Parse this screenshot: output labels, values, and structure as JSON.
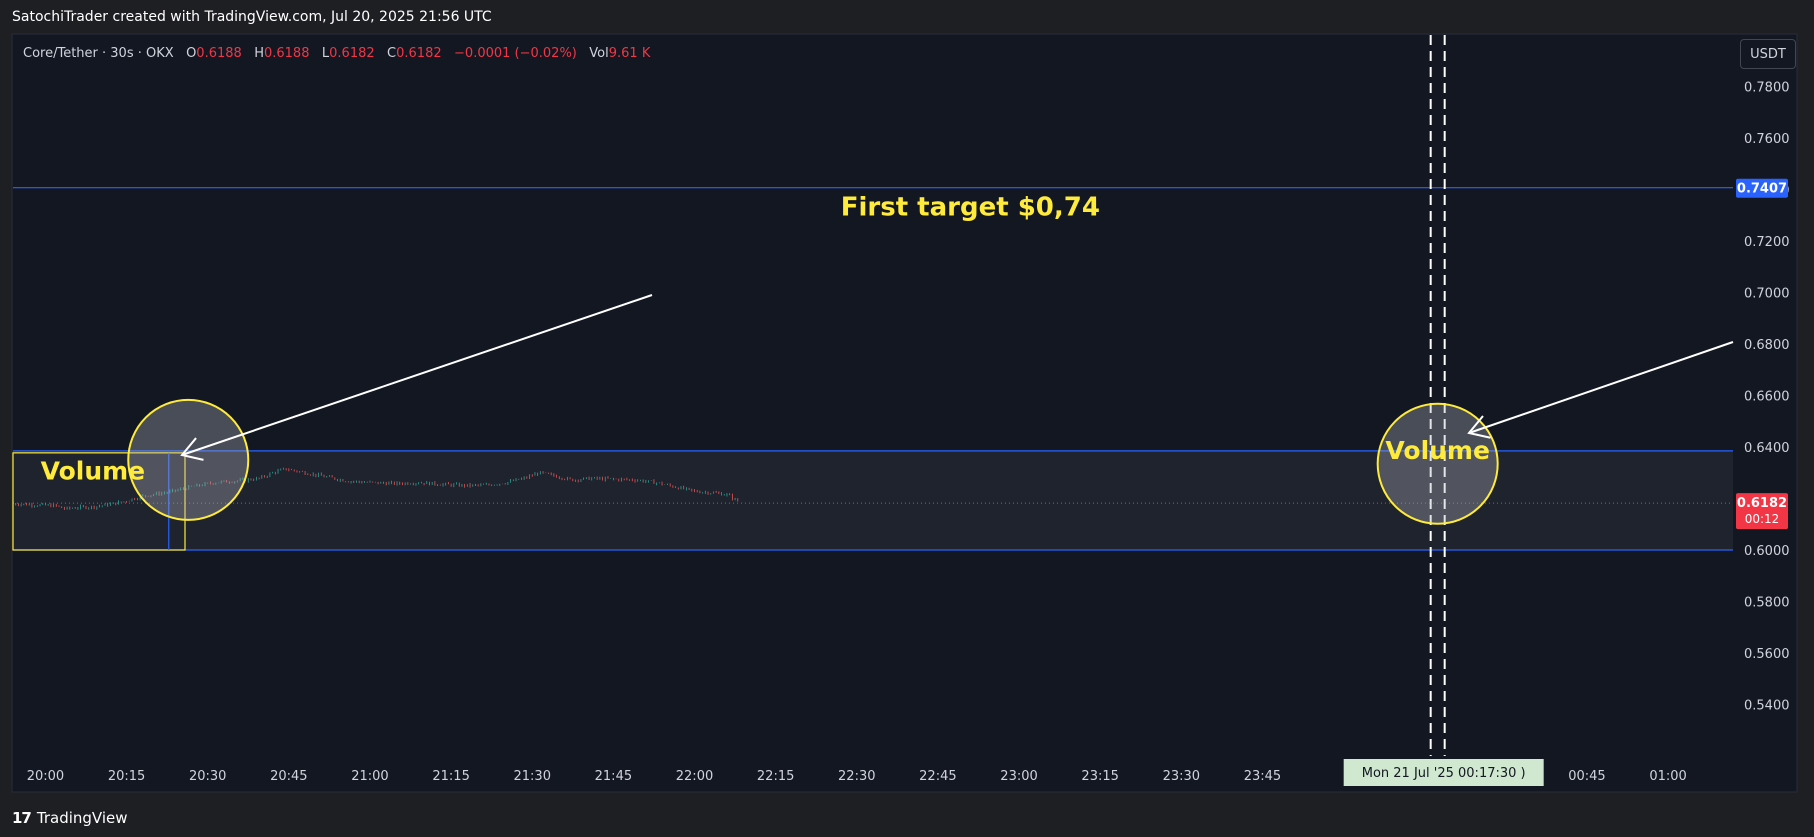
{
  "header": {
    "caption": "SatochiTrader created with TradingView.com, Jul 20, 2025 21:56 UTC"
  },
  "footer": {
    "brand": "TradingView",
    "logo_icon": "tradingview-logo-icon"
  },
  "legend": {
    "symbol": "Core/Tether · 30s · OKX",
    "open_label": "O",
    "open": "0.6188",
    "high_label": "H",
    "high": "0.6188",
    "low_label": "L",
    "low": "0.6182",
    "close_label": "C",
    "close": "0.6182",
    "change": "−0.0001 (−0.02%)",
    "vol_label": "Vol",
    "vol": "9.61 K"
  },
  "currency_button": "USDT",
  "colors": {
    "background": "#131722",
    "up": "#26a69a",
    "down": "#ef5350",
    "line_blue": "#2962ff",
    "annotation_yellow": "#ffeb3b",
    "price_label_red": "#f23645",
    "time_label_green": "#cfe8cf"
  },
  "chart_data": {
    "type": "candlestick",
    "ylim": [
      0.52,
      0.8
    ],
    "y_ticks": [
      "0.7800",
      "0.7600",
      "0.7400",
      "0.7200",
      "0.7000",
      "0.6800",
      "0.6600",
      "0.6400",
      "0.6000",
      "0.5800",
      "0.5600",
      "0.5400"
    ],
    "x_ticks": [
      "20:00",
      "20:15",
      "20:30",
      "20:45",
      "21:00",
      "21:15",
      "21:30",
      "21:45",
      "22:00",
      "22:15",
      "22:30",
      "22:45",
      "23:00",
      "23:15",
      "23:30",
      "23:45",
      "00:45",
      "01:00"
    ],
    "x_tick_hours": [
      20.0,
      20.25,
      20.5,
      20.75,
      21.0,
      21.25,
      21.5,
      21.75,
      22.0,
      22.25,
      22.5,
      22.75,
      23.0,
      23.25,
      23.5,
      23.75,
      24.75,
      25.0
    ],
    "xlim_hours": [
      19.9,
      25.2
    ],
    "price_path": [
      [
        19.9,
        0.618
      ],
      [
        19.97,
        0.6175
      ],
      [
        20.03,
        0.6172
      ],
      [
        20.06,
        0.616
      ],
      [
        20.1,
        0.6165
      ],
      [
        20.15,
        0.6168
      ],
      [
        20.2,
        0.6178
      ],
      [
        20.24,
        0.6188
      ],
      [
        20.3,
        0.621
      ],
      [
        20.38,
        0.6225
      ],
      [
        20.45,
        0.6245
      ],
      [
        20.52,
        0.6262
      ],
      [
        20.6,
        0.627
      ],
      [
        20.66,
        0.6278
      ],
      [
        20.7,
        0.63
      ],
      [
        20.74,
        0.6315
      ],
      [
        20.8,
        0.63
      ],
      [
        20.86,
        0.6285
      ],
      [
        20.93,
        0.6268
      ],
      [
        21.0,
        0.6262
      ],
      [
        21.08,
        0.6258
      ],
      [
        21.15,
        0.6262
      ],
      [
        21.22,
        0.6255
      ],
      [
        21.3,
        0.625
      ],
      [
        21.36,
        0.6252
      ],
      [
        21.42,
        0.6262
      ],
      [
        21.48,
        0.628
      ],
      [
        21.52,
        0.63
      ],
      [
        21.57,
        0.6288
      ],
      [
        21.62,
        0.6272
      ],
      [
        21.68,
        0.6278
      ],
      [
        21.75,
        0.6275
      ],
      [
        21.82,
        0.6272
      ],
      [
        21.88,
        0.6262
      ],
      [
        21.94,
        0.6245
      ],
      [
        22.0,
        0.6228
      ],
      [
        22.06,
        0.6222
      ],
      [
        22.1,
        0.6215
      ],
      [
        22.14,
        0.6185
      ]
    ],
    "horizontal_levels": [
      {
        "price": 0.7407,
        "label": "0.7407"
      },
      {
        "price": 0.6385
      },
      {
        "price": 0.6
      }
    ],
    "current_price": {
      "price": 0.6182,
      "label": "0.6182",
      "countdown": "00:12"
    },
    "vertical_marker": {
      "time_hour": 24.29,
      "label": "Mon 21 Jul '25",
      "time_label": "00:17:30"
    },
    "annotations": [
      {
        "text": "First target $0,74",
        "time_hour": 22.85,
        "price": 0.733
      },
      {
        "text": "Volume",
        "time_hour": 20.17,
        "price": 0.6305
      },
      {
        "text": "Volume",
        "time_hour": 24.29,
        "price": 0.6385
      }
    ]
  }
}
